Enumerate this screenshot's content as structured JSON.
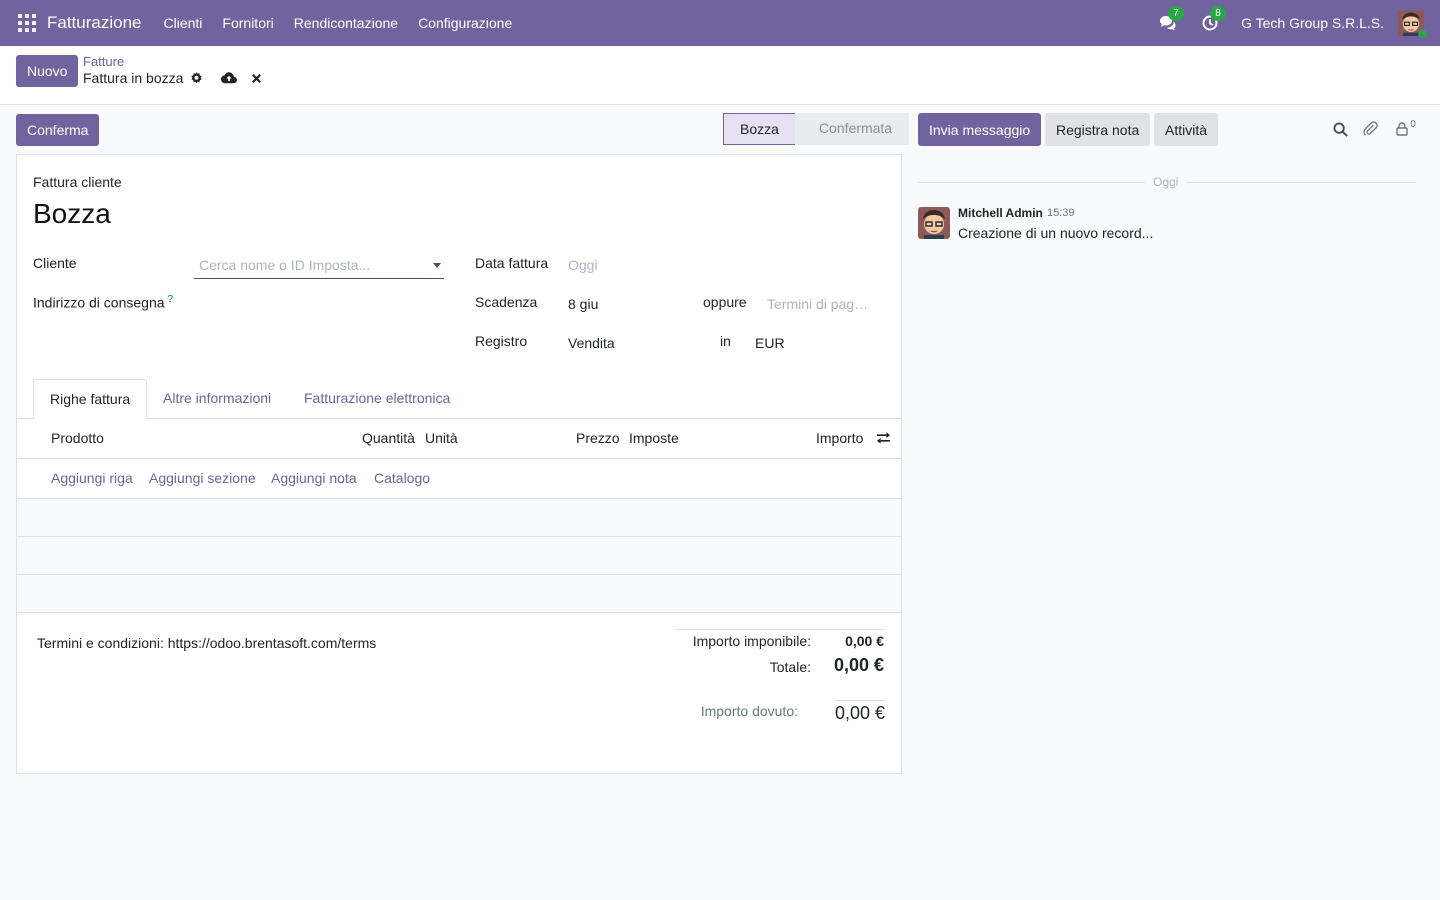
{
  "navbar": {
    "app_name": "Fatturazione",
    "menu": [
      "Clienti",
      "Fornitori",
      "Rendicontazione",
      "Configurazione"
    ],
    "messages_count": "7",
    "activities_count": "8",
    "company": "G Tech Group S.R.L.S.",
    "accent_color": "#71639e"
  },
  "control": {
    "new_label": "Nuovo",
    "breadcrumb_parent": "Fatture",
    "breadcrumb_current": "Fattura in bozza"
  },
  "statusbar": {
    "confirm_label": "Conferma",
    "stages": [
      "Bozza",
      "Confermata"
    ],
    "active_stage": "Bozza"
  },
  "form": {
    "type_label": "Fattura cliente",
    "title": "Bozza",
    "customer_label": "Cliente",
    "customer_placeholder": "Cerca nome o ID Imposta...",
    "delivery_label": "Indirizzo di consegna",
    "delivery_help": "?",
    "invoice_date_label": "Data fattura",
    "invoice_date_placeholder": "Oggi",
    "due_label": "Scadenza",
    "due_value": "8 giu",
    "or_label": "oppure",
    "terms_placeholder": "Termini di pag…",
    "journal_label": "Registro",
    "journal_value": "Vendita",
    "in_label": "in",
    "currency": "EUR"
  },
  "tabs": [
    "Righe fattura",
    "Altre informazioni",
    "Fatturazione elettronica"
  ],
  "table": {
    "headers": {
      "product": "Prodotto",
      "quantity": "Quantità",
      "unit": "Unità",
      "price": "Prezzo",
      "taxes": "Imposte",
      "amount": "Importo"
    },
    "add_links": [
      "Aggiungi riga",
      "Aggiungi sezione",
      "Aggiungi nota",
      "Catalogo"
    ]
  },
  "footer": {
    "terms": "Termini e condizioni: https://odoo.brentasoft.com/terms",
    "untaxed_label": "Importo imponibile:",
    "untaxed_value": "0,00 €",
    "total_label": "Totale:",
    "total_value": "0,00 €",
    "due_label": "Importo dovuto:",
    "due_value": "0,00 €"
  },
  "chatter": {
    "send_message": "Invia messaggio",
    "log_note": "Registra nota",
    "activities": "Attività",
    "followers_count": "0",
    "today_label": "Oggi",
    "message": {
      "author": "Mitchell Admin",
      "time": "15:39",
      "body": "Creazione di un nuovo record..."
    }
  }
}
